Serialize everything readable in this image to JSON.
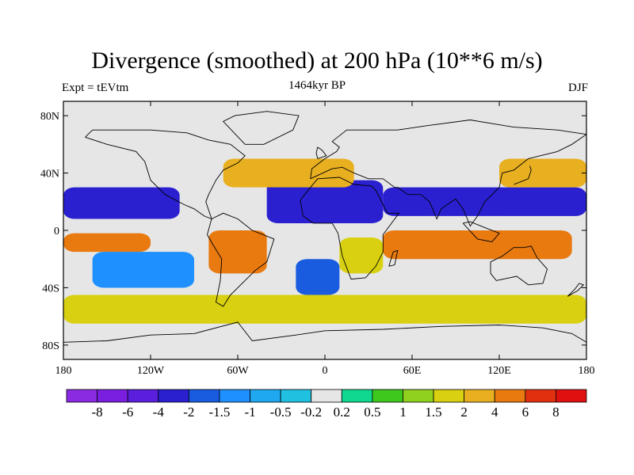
{
  "title": "Divergence (smoothed) at 200 hPa (10**6 m/s)",
  "subtitle_left": "Expt = tEVtm",
  "subtitle_center": "1464kyr BP",
  "subtitle_right": "DJF",
  "chart_data": {
    "type": "heatmap",
    "title": "Divergence (smoothed) at 200 hPa (10**6 m/s)",
    "units": "10**6 m/s",
    "projection": "cylindrical-equidistant",
    "lon_range": [
      -180,
      180
    ],
    "lat_range": [
      -90,
      90
    ],
    "x_ticks": [
      {
        "value": -180,
        "label": "180"
      },
      {
        "value": -120,
        "label": "120W"
      },
      {
        "value": -60,
        "label": "60W"
      },
      {
        "value": 0,
        "label": "0"
      },
      {
        "value": 60,
        "label": "60E"
      },
      {
        "value": 120,
        "label": "120E"
      },
      {
        "value": 180,
        "label": "180"
      }
    ],
    "y_ticks": [
      {
        "value": 80,
        "label": "80N"
      },
      {
        "value": 40,
        "label": "40N"
      },
      {
        "value": 0,
        "label": "0"
      },
      {
        "value": -40,
        "label": "40S"
      },
      {
        "value": -80,
        "label": "80S"
      }
    ],
    "contour_levels": [
      "-8",
      "-6",
      "-4",
      "-2",
      "-1.5",
      "-1",
      "-0.5",
      "-0.2",
      "0.2",
      "0.5",
      "1",
      "1.5",
      "2",
      "4",
      "6",
      "8"
    ],
    "colors": [
      "#8a2be2",
      "#7a1fe0",
      "#5a1edc",
      "#2a20d0",
      "#1a5ce0",
      "#1e90ff",
      "#1fa8f0",
      "#20c0e0",
      "#e6e6e6",
      "#10d890",
      "#3ec81e",
      "#90d01e",
      "#d8d010",
      "#e8b020",
      "#e87a10",
      "#e03010",
      "#e01010"
    ],
    "regions": [
      {
        "name": "tropical-north-pacific-convergence",
        "lon": [
          -180,
          -100
        ],
        "lat": [
          8,
          30
        ],
        "value": -3
      },
      {
        "name": "tropical-north-atlantic-africa-convergence",
        "lon": [
          -40,
          40
        ],
        "lat": [
          5,
          35
        ],
        "value": -3
      },
      {
        "name": "north-indian-pacific-convergence",
        "lon": [
          40,
          180
        ],
        "lat": [
          10,
          30
        ],
        "value": -3
      },
      {
        "name": "equatorial-pacific-divergence",
        "lon": [
          -180,
          -120
        ],
        "lat": [
          -15,
          -2
        ],
        "value": 5
      },
      {
        "name": "south-america-divergence",
        "lon": [
          -80,
          -40
        ],
        "lat": [
          -30,
          0
        ],
        "value": 5
      },
      {
        "name": "indian-ocean-maritime-continent-divergence",
        "lon": [
          40,
          170
        ],
        "lat": [
          -20,
          0
        ],
        "value": 5
      },
      {
        "name": "southern-africa-divergence",
        "lon": [
          10,
          40
        ],
        "lat": [
          -30,
          -5
        ],
        "value": 1.5
      },
      {
        "name": "south-pacific-convergence",
        "lon": [
          -160,
          -90
        ],
        "lat": [
          -40,
          -15
        ],
        "value": -1.5
      },
      {
        "name": "south-atlantic-convergence",
        "lon": [
          -20,
          10
        ],
        "lat": [
          -45,
          -20
        ],
        "value": -2
      },
      {
        "name": "southern-ocean-divergence-band",
        "lon": [
          -180,
          180
        ],
        "lat": [
          -65,
          -45
        ],
        "value": 1.5
      },
      {
        "name": "north-atlantic-divergence",
        "lon": [
          -70,
          20
        ],
        "lat": [
          30,
          50
        ],
        "value": 3
      },
      {
        "name": "north-pacific-divergence",
        "lon": [
          120,
          180
        ],
        "lat": [
          30,
          50
        ],
        "value": 3
      },
      {
        "name": "arctic-neutral",
        "lon": [
          -180,
          180
        ],
        "lat": [
          75,
          90
        ],
        "value": 0
      },
      {
        "name": "antarctic-neutral",
        "lon": [
          -180,
          180
        ],
        "lat": [
          -90,
          -70
        ],
        "value": 0
      }
    ]
  }
}
